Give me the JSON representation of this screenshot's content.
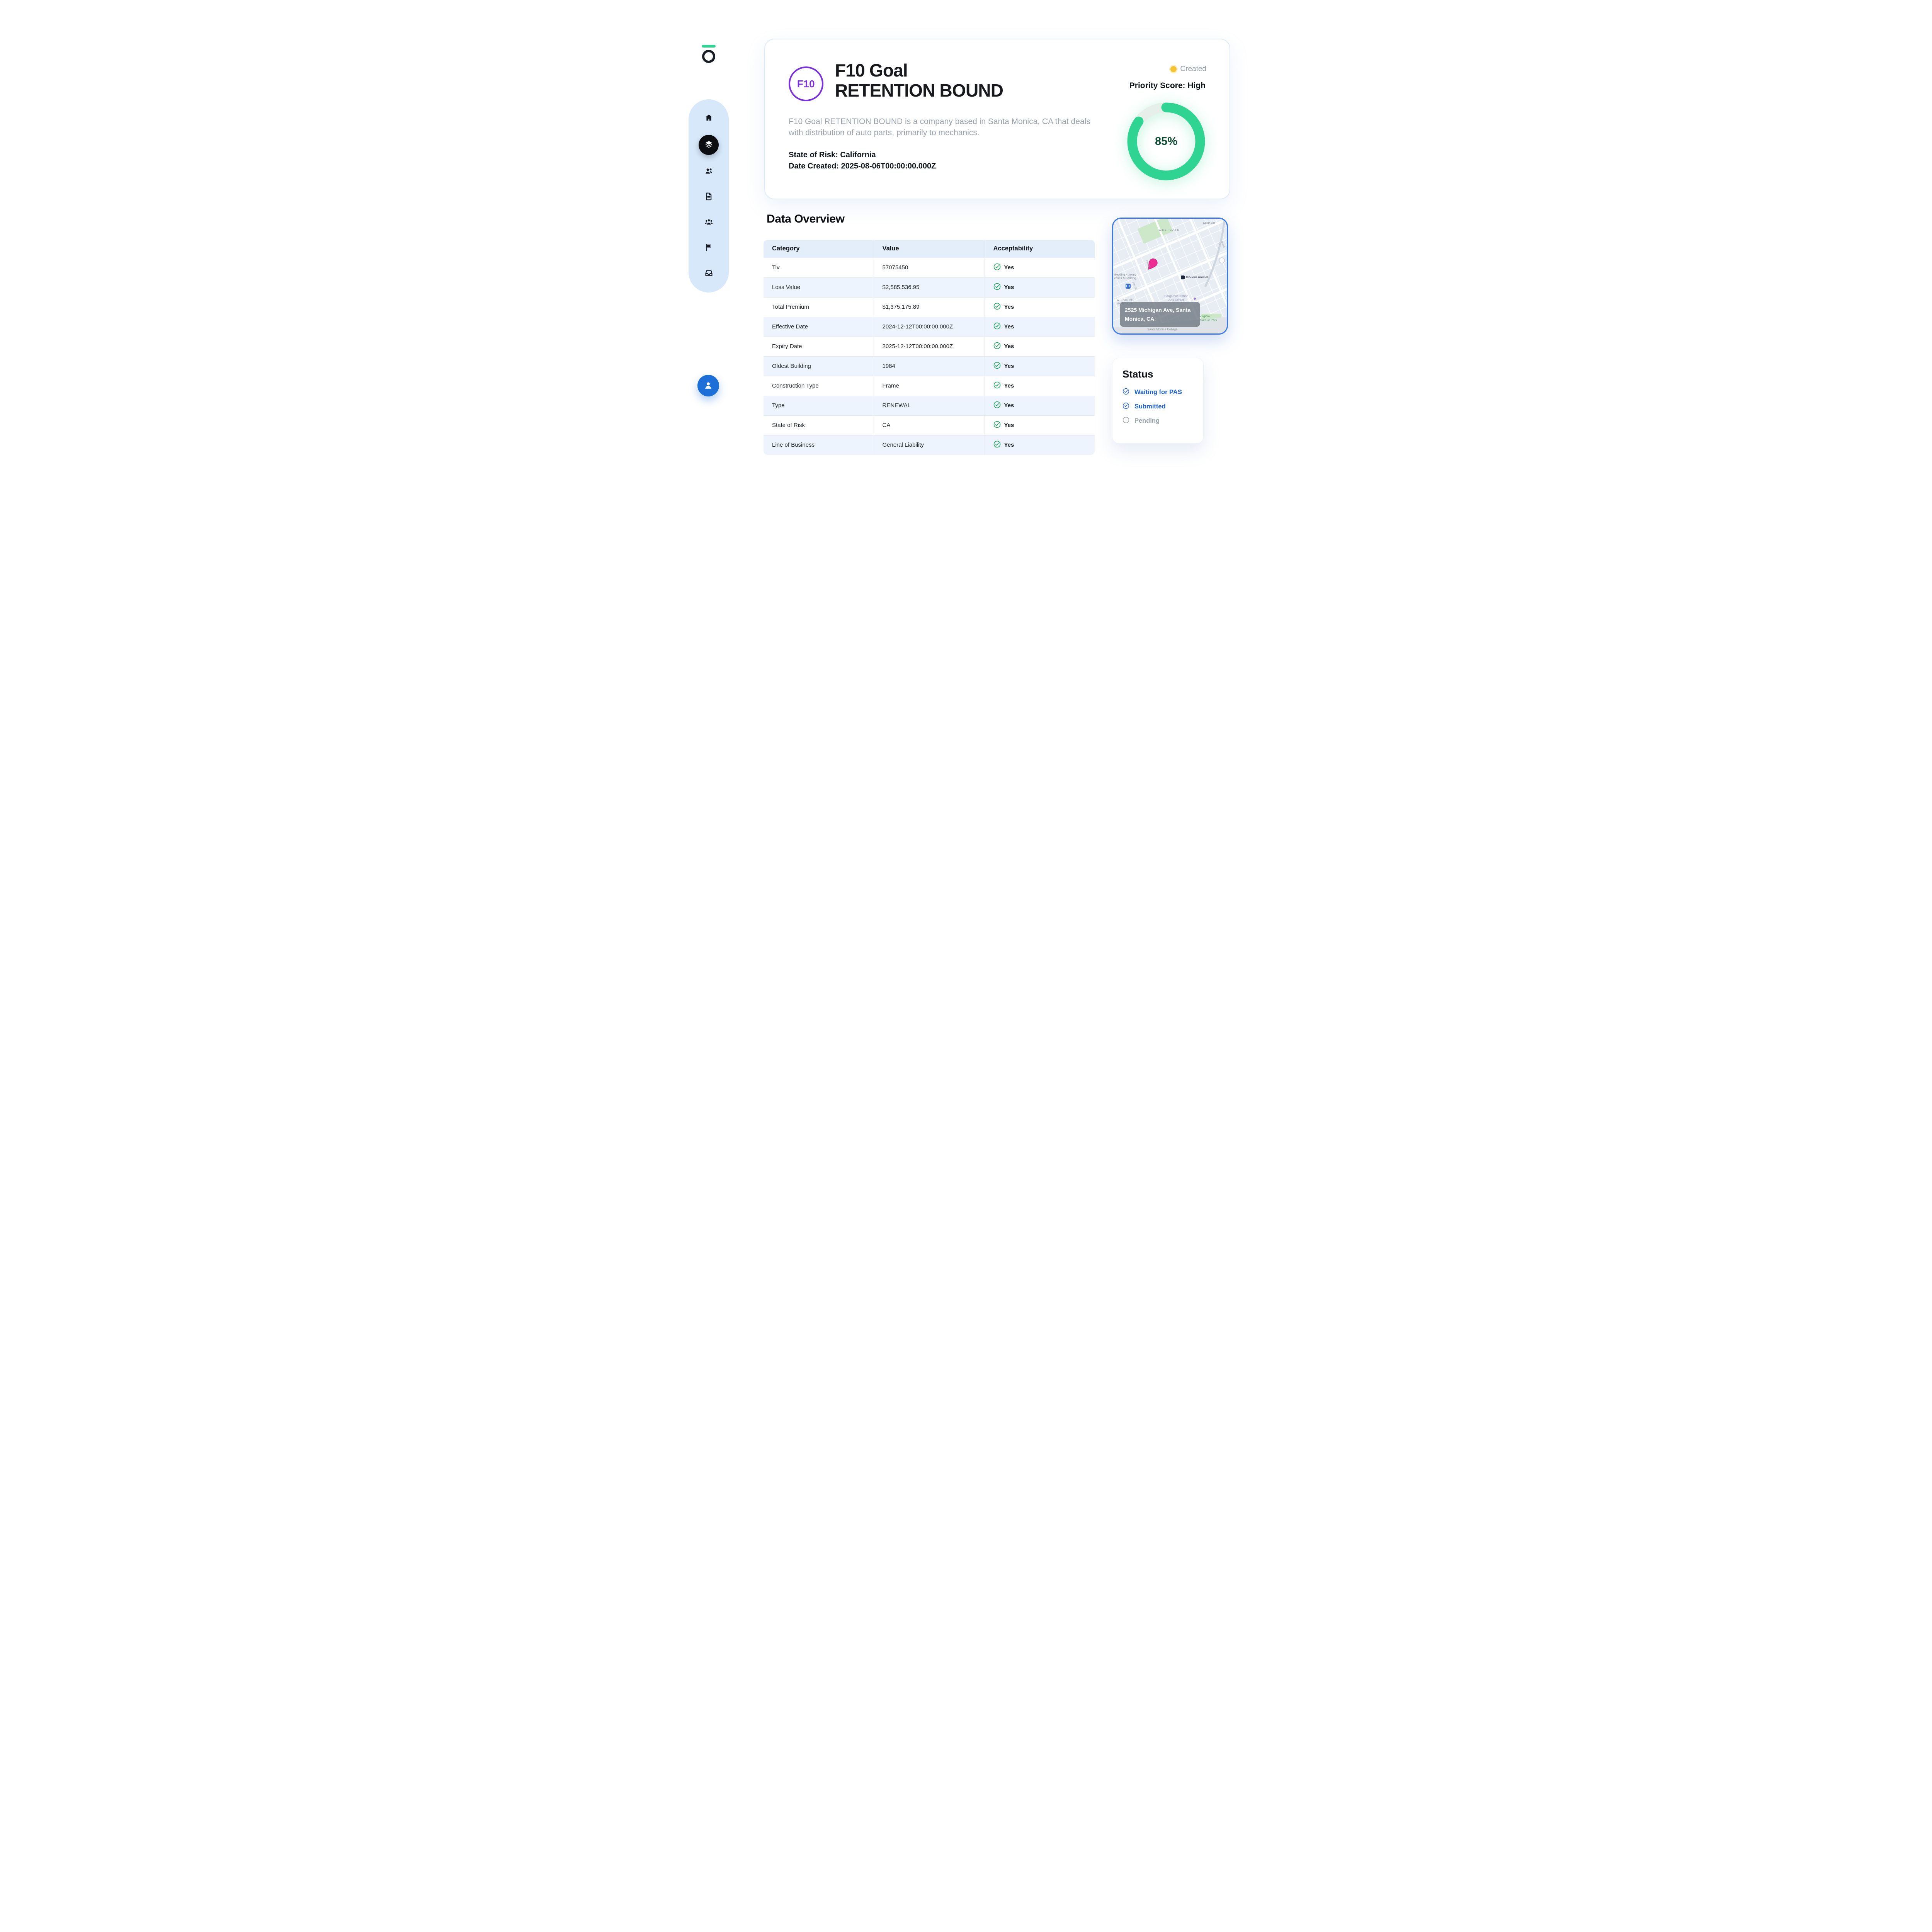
{
  "brand": {
    "logo_name": "circle-o-logo",
    "accent_green": "#2fd492"
  },
  "sidebar": {
    "items": [
      {
        "icon": "home-icon",
        "active": false
      },
      {
        "icon": "layers-icon",
        "active": true
      },
      {
        "icon": "people-icon",
        "active": false
      },
      {
        "icon": "document-icon",
        "active": false
      },
      {
        "icon": "team-icon",
        "active": false
      },
      {
        "icon": "flag-icon",
        "active": false
      },
      {
        "icon": "inbox-icon",
        "active": false
      }
    ],
    "avatar_icon": "user-icon"
  },
  "header": {
    "badge": "F10",
    "title_line1": "F10 Goal",
    "title_line2": "RETENTION BOUND",
    "description": "F10 Goal RETENTION BOUND is a company based in Santa Monica, CA that deals with distribution of auto parts, primarily to mechanics.",
    "state_of_risk": "State of Risk: California",
    "date_created": "Date Created: 2025-08-06T00:00:00.000Z",
    "status_label": "Created",
    "status_dot_color": "#f6c333",
    "priority_label": "Priority Score: High",
    "score_percent": "85%",
    "score_value": 85,
    "ring_color": "#2fd492"
  },
  "data_overview": {
    "title": "Data Overview",
    "columns": [
      "Category",
      "Value",
      "Acceptability"
    ],
    "rows": [
      {
        "category": "Tiv",
        "value": "57075450",
        "acceptability": "Yes"
      },
      {
        "category": "Loss Value",
        "value": "$2,585,536.95",
        "acceptability": "Yes"
      },
      {
        "category": "Total Premium",
        "value": "$1,375,175.89",
        "acceptability": "Yes"
      },
      {
        "category": "Effective Date",
        "value": "2024-12-12T00:00:00.000Z",
        "acceptability": "Yes"
      },
      {
        "category": "Expiry Date",
        "value": "2025-12-12T00:00:00.000Z",
        "acceptability": "Yes"
      },
      {
        "category": "Oldest Building",
        "value": "1984",
        "acceptability": "Yes"
      },
      {
        "category": "Construction Type",
        "value": "Frame",
        "acceptability": "Yes"
      },
      {
        "category": "Type",
        "value": "RENEWAL",
        "acceptability": "Yes"
      },
      {
        "category": "State of Risk",
        "value": "CA",
        "acceptability": "Yes"
      },
      {
        "category": "Line of Business",
        "value": "General Liability",
        "acceptability": "Yes"
      }
    ],
    "check_color": "#1ba158"
  },
  "map": {
    "address": "2525 Michigan Ave, Santa Monica, CA",
    "pin_icon": "map-pin-icon",
    "pin_color": "#ee2d92",
    "labels": [
      {
        "key": "color-bar",
        "text": "Color Bar"
      },
      {
        "key": "westgate",
        "text": "WESTGATE"
      },
      {
        "key": "bedding",
        "text": "Bedding - Luxury\nesses & Bedding"
      },
      {
        "key": "modern-animal",
        "text": "Modern Animal"
      },
      {
        "key": "bergamot",
        "text": "Bergamot Station\nArts Center"
      },
      {
        "key": "wilshire-montana",
        "text": "WILSHIRE\nMONTANA"
      },
      {
        "key": "virginia-park",
        "text": "Virginia\nAvenue Park"
      },
      {
        "key": "santa-monica-college",
        "text": "Santa Monica College"
      },
      {
        "key": "bundy-dr",
        "text": "Bundy Dr"
      },
      {
        "key": "26th-st",
        "text": "26th St"
      },
      {
        "key": "20th-st",
        "text": "20th St"
      }
    ]
  },
  "status": {
    "title": "Status",
    "items": [
      {
        "label": "Waiting for PAS",
        "state": "done"
      },
      {
        "label": "Submitted",
        "state": "done"
      },
      {
        "label": "Pending",
        "state": "pending"
      }
    ],
    "done_color": "#1b61d1",
    "pending_color": "#98a2ad"
  }
}
